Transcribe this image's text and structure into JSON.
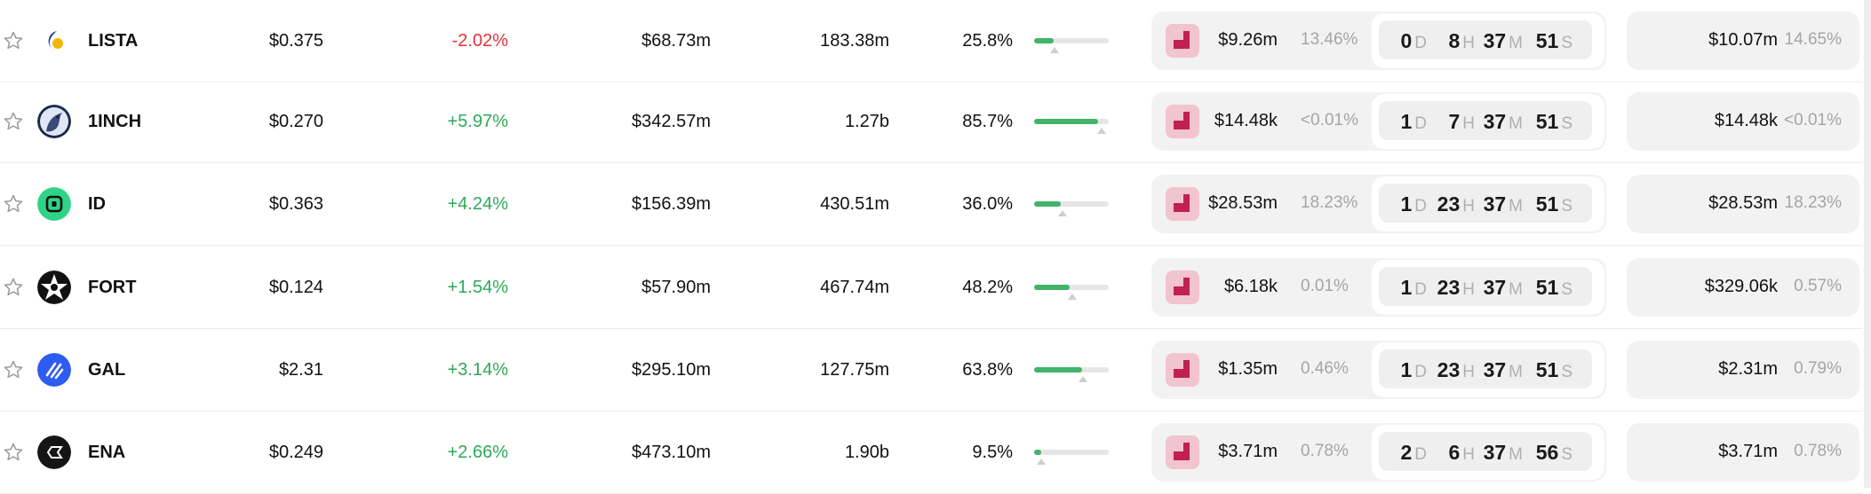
{
  "colors": {
    "positive": "#2ea85a",
    "negative": "#e0343b",
    "bar_fill": "#41b46a",
    "card_bg": "#f2f2f2",
    "launch_icon": "#c0214f"
  },
  "units": {
    "d": "D",
    "h": "H",
    "m": "M",
    "s": "S"
  },
  "rows": [
    {
      "symbol": "LISTA",
      "logo": "lista-logo",
      "price": "$0.375",
      "change": "-2.02%",
      "change_dir": "neg",
      "mcap": "$68.73m",
      "supply": "183.38m",
      "pct": "25.8%",
      "bar_fill": 0.258,
      "bar_marker": 0.27,
      "amt1": "$9.26m",
      "share1": "13.46%",
      "t_d": "0",
      "t_h": "8",
      "t_m": "37",
      "t_s": "51",
      "amt2": "$10.07m",
      "share2": "14.65%"
    },
    {
      "symbol": "1INCH",
      "logo": "1inch-logo",
      "price": "$0.270",
      "change": "+5.97%",
      "change_dir": "pos",
      "mcap": "$342.57m",
      "supply": "1.27b",
      "pct": "85.7%",
      "bar_fill": 0.857,
      "bar_marker": 0.9,
      "amt1": "$14.48k",
      "share1": "<0.01%",
      "t_d": "1",
      "t_h": "7",
      "t_m": "37",
      "t_s": "51",
      "amt2": "$14.48k",
      "share2": "<0.01%"
    },
    {
      "symbol": "ID",
      "logo": "id-logo",
      "price": "$0.363",
      "change": "+4.24%",
      "change_dir": "pos",
      "mcap": "$156.39m",
      "supply": "430.51m",
      "pct": "36.0%",
      "bar_fill": 0.36,
      "bar_marker": 0.38,
      "amt1": "$28.53m",
      "share1": "18.23%",
      "t_d": "1",
      "t_h": "23",
      "t_m": "37",
      "t_s": "51",
      "amt2": "$28.53m",
      "share2": "18.23%"
    },
    {
      "symbol": "FORT",
      "logo": "fort-logo",
      "price": "$0.124",
      "change": "+1.54%",
      "change_dir": "pos",
      "mcap": "$57.90m",
      "supply": "467.74m",
      "pct": "48.2%",
      "bar_fill": 0.482,
      "bar_marker": 0.51,
      "amt1": "$6.18k",
      "share1": "0.01%",
      "t_d": "1",
      "t_h": "23",
      "t_m": "37",
      "t_s": "51",
      "amt2": "$329.06k",
      "share2": "0.57%"
    },
    {
      "symbol": "GAL",
      "logo": "gal-logo",
      "price": "$2.31",
      "change": "+3.14%",
      "change_dir": "pos",
      "mcap": "$295.10m",
      "supply": "127.75m",
      "pct": "63.8%",
      "bar_fill": 0.638,
      "bar_marker": 0.66,
      "amt1": "$1.35m",
      "share1": "0.46%",
      "t_d": "1",
      "t_h": "23",
      "t_m": "37",
      "t_s": "51",
      "amt2": "$2.31m",
      "share2": "0.79%"
    },
    {
      "symbol": "ENA",
      "logo": "ena-logo",
      "price": "$0.249",
      "change": "+2.66%",
      "change_dir": "pos",
      "mcap": "$473.10m",
      "supply": "1.90b",
      "pct": "9.5%",
      "bar_fill": 0.095,
      "bar_marker": 0.1,
      "amt1": "$3.71m",
      "share1": "0.78%",
      "t_d": "2",
      "t_h": "6",
      "t_m": "37",
      "t_s": "56",
      "amt2": "$3.71m",
      "share2": "0.78%"
    }
  ]
}
